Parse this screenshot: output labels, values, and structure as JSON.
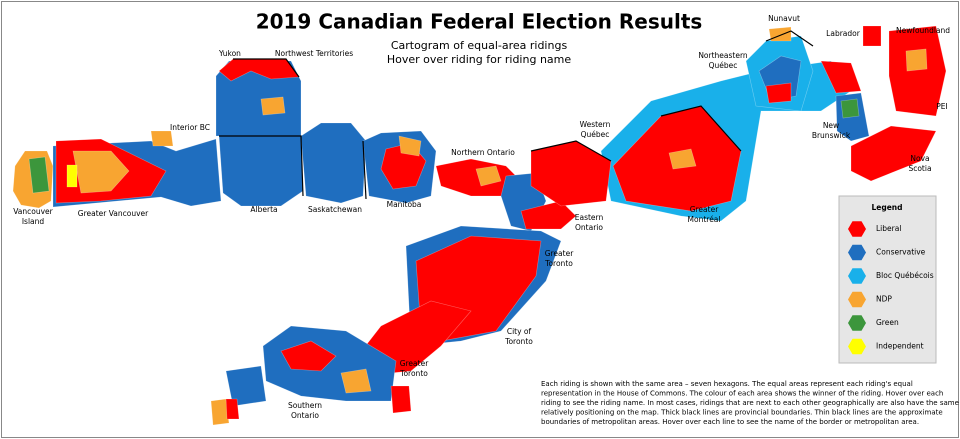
{
  "header": {
    "title": "2019 Canadian Federal Election Results",
    "subtitle": [
      "Cartogram of equal-area ridings",
      "Hover over riding for riding name"
    ]
  },
  "regions": [
    {
      "lines": [
        "Yukon"
      ]
    },
    {
      "lines": [
        "Northwest Territories"
      ]
    },
    {
      "lines": [
        "Interior BC"
      ]
    },
    {
      "lines": [
        "Vancouver",
        "Island"
      ]
    },
    {
      "lines": [
        "Greater Vancouver"
      ]
    },
    {
      "lines": [
        "Alberta"
      ]
    },
    {
      "lines": [
        "Saskatchewan"
      ]
    },
    {
      "lines": [
        "Manitoba"
      ]
    },
    {
      "lines": [
        "Northern Ontario"
      ]
    },
    {
      "lines": [
        "Western",
        "Québec"
      ]
    },
    {
      "lines": [
        "Eastern",
        "Ontario"
      ]
    },
    {
      "lines": [
        "Greater",
        "Montréal"
      ]
    },
    {
      "lines": [
        "Northeastern",
        "Québec"
      ]
    },
    {
      "lines": [
        "Nunavut"
      ]
    },
    {
      "lines": [
        "Labrador"
      ]
    },
    {
      "lines": [
        "Newfoundland"
      ]
    },
    {
      "lines": [
        "PEI"
      ]
    },
    {
      "lines": [
        "New",
        "Brunswick"
      ]
    },
    {
      "lines": [
        "Nova",
        "Scotia"
      ]
    },
    {
      "lines": [
        "Greater",
        "Toronto"
      ]
    },
    {
      "lines": [
        "City of",
        "Toronto"
      ]
    },
    {
      "lines": [
        "Greater",
        "Toronto"
      ]
    },
    {
      "lines": [
        "Southern",
        "Ontario"
      ]
    }
  ],
  "legend": {
    "title": "Legend",
    "items": [
      {
        "name": "Liberal",
        "color": "#ff0000"
      },
      {
        "name": "Conservative",
        "color": "#1f6ebf"
      },
      {
        "name": "Bloc Québécois",
        "color": "#19b0ea"
      },
      {
        "name": "NDP",
        "color": "#f8a531"
      },
      {
        "name": "Green",
        "color": "#3c963c"
      },
      {
        "name": "Independent",
        "color": "#ffff00"
      }
    ]
  },
  "note": [
    "Each riding is shown with the same area – seven hexagons.  The equal areas represent each riding's equal",
    "representation in the House of Commons.  The colour of each area shows the winner of the riding.  Hover over each",
    "riding to see the riding name.  In most cases, ridings that are next to each other geographically are also have the same",
    "relatively positioning on the map.  Thick black lines are provincial boundaries.  Thin black lines are the approximate",
    "boundaries of metropolitan areas. Hover over each line to see the name of the border or metropolitan area."
  ]
}
